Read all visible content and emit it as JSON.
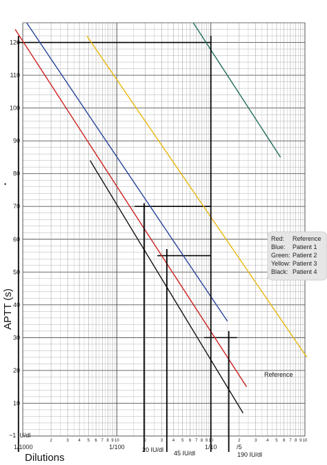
{
  "chart_data": {
    "type": "line",
    "title": "",
    "xlabel": "Dilutions",
    "ylabel": "APTT (s)",
    "x_scale": "log",
    "xlim": [
      0.001,
      1
    ],
    "ylim": [
      0,
      126
    ],
    "grid": true,
    "y_tick_labels": [
      "10",
      "20",
      "30",
      "40",
      "50",
      "60",
      "70",
      "80",
      "90",
      "100",
      "110",
      "120"
    ],
    "x_decade_labels": [
      "1/1000",
      "1/100",
      "1/10",
      "/5"
    ],
    "x_minor_labels": [
      "2",
      "3",
      "4",
      "5",
      "6",
      "7",
      "8",
      "9",
      "10"
    ],
    "bottom_left_label": "~1 IU/dl",
    "stray_mark": "•",
    "series": [
      {
        "name": "Reference",
        "color": "#cc1f1f",
        "x": [
          0.00083,
          0.24
        ],
        "y": [
          124,
          15
        ]
      },
      {
        "name": "Patient 1",
        "color": "#26429a",
        "x": [
          0.0011,
          0.15
        ],
        "y": [
          126,
          35
        ]
      },
      {
        "name": "Patient 2",
        "color": "#1f6b5c",
        "x": [
          0.065,
          0.55
        ],
        "y": [
          126,
          85
        ]
      },
      {
        "name": "Patient 3",
        "color": "#e8b70c",
        "x": [
          0.0048,
          1.05
        ],
        "y": [
          122,
          24
        ]
      },
      {
        "name": "Patient 4",
        "color": "#111111",
        "x": [
          0.0052,
          0.22
        ],
        "y": [
          84,
          7
        ]
      }
    ],
    "reference_lines": [
      {
        "y": 120,
        "x_from": 0.00087,
        "x_to": 0.1
      },
      {
        "y": 70,
        "x_from": 0.0155,
        "x_to": 0.1
      },
      {
        "y": 55,
        "x_from": 0.027,
        "x_to": 0.1
      },
      {
        "y": 30,
        "x_from": 0.085,
        "x_to": 0.19
      }
    ],
    "drop_lines": [
      {
        "x": 0.0009,
        "y_top": 122
      },
      {
        "x": 0.1,
        "y_top": 122
      },
      {
        "x": 0.0195,
        "y_top": 71
      },
      {
        "x": 0.034,
        "y_top": 57
      },
      {
        "x": 0.155,
        "y_top": 32
      }
    ],
    "annotations": [
      {
        "text": "20 IU/dl",
        "x": 0.0195
      },
      {
        "text": "45 IU/dl",
        "x": 0.034
      },
      {
        "text": "190 IU/dl",
        "x": 0.155
      }
    ],
    "series_label": {
      "text": "Reference",
      "x": 0.2,
      "y": 18
    },
    "legend": {
      "position": "right",
      "entries": [
        {
          "color_word": "Red:",
          "label": "Reference"
        },
        {
          "color_word": "Blue:",
          "label": "Patient 1"
        },
        {
          "color_word": "Green:",
          "label": "Patient 2"
        },
        {
          "color_word": "Yellow:",
          "label": "Patient 3"
        },
        {
          "color_word": "Black:",
          "label": "Patient 4"
        }
      ]
    }
  }
}
